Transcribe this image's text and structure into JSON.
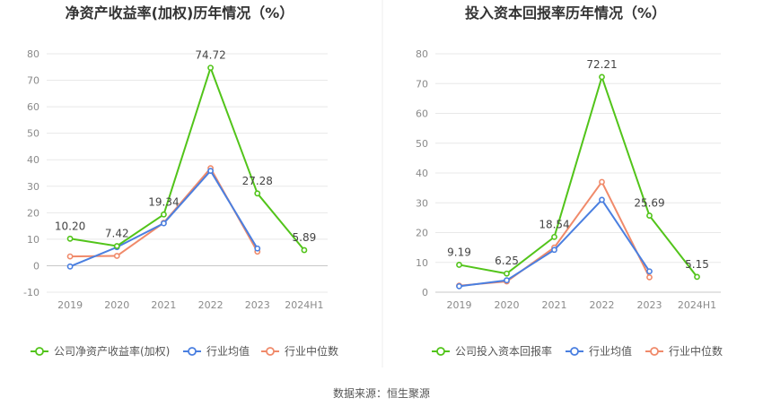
{
  "source": {
    "label": "数据来源：",
    "name": "恒生聚源"
  },
  "chart_data": [
    {
      "type": "line",
      "title": "净资产收益率(加权)历年情况（%）",
      "categories": [
        "2019",
        "2020",
        "2021",
        "2022",
        "2023",
        "2024H1"
      ],
      "ylim": [
        -10,
        80
      ],
      "yticks": [
        -10,
        0,
        10,
        20,
        30,
        40,
        50,
        60,
        70,
        80
      ],
      "grid": true,
      "legend_position": "bottom",
      "series": [
        {
          "name": "公司净资产收益率(加权)",
          "color": "#52c41a",
          "values": [
            10.2,
            7.42,
            19.34,
            74.72,
            27.28,
            5.89
          ],
          "labels": [
            "10.20",
            "7.42",
            "19.34",
            "74.72",
            "27.28",
            "5.89"
          ]
        },
        {
          "name": "行业均值",
          "color": "#4a7fe0",
          "values": [
            -0.3,
            7.0,
            16.0,
            35.8,
            6.5,
            null
          ]
        },
        {
          "name": "行业中位数",
          "color": "#f08a6a",
          "values": [
            3.5,
            3.7,
            16.2,
            36.8,
            5.3,
            null
          ]
        }
      ]
    },
    {
      "type": "line",
      "title": "投入资本回报率历年情况（%）",
      "categories": [
        "2019",
        "2020",
        "2021",
        "2022",
        "2023",
        "2024H1"
      ],
      "ylim": [
        0,
        80
      ],
      "yticks": [
        0,
        10,
        20,
        30,
        40,
        50,
        60,
        70,
        80
      ],
      "grid": true,
      "legend_position": "bottom",
      "series": [
        {
          "name": "公司投入资本回报率",
          "color": "#52c41a",
          "values": [
            9.19,
            6.25,
            18.54,
            72.21,
            25.69,
            5.15
          ],
          "labels": [
            "9.19",
            "6.25",
            "18.54",
            "72.21",
            "25.69",
            "5.15"
          ]
        },
        {
          "name": "行业均值",
          "color": "#4a7fe0",
          "values": [
            2.0,
            4.0,
            14.2,
            31.0,
            7.0,
            null
          ]
        },
        {
          "name": "行业中位数",
          "color": "#f08a6a",
          "values": [
            2.2,
            3.6,
            15.0,
            37.0,
            5.0,
            null
          ]
        }
      ]
    }
  ]
}
